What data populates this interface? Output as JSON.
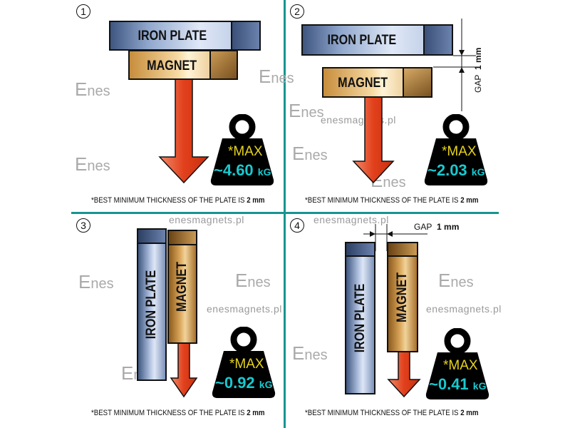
{
  "panels": [
    {
      "number": "1",
      "iron_label": "IRON PLATE",
      "magnet_label": "MAGNET",
      "max_label": "*MAX",
      "value": "~4.60",
      "unit": "kG",
      "footnote_prefix": "*BEST MINIMUM THICKNESS OF THE PLATE IS ",
      "footnote_bold": "2 mm"
    },
    {
      "number": "2",
      "iron_label": "IRON PLATE",
      "magnet_label": "MAGNET",
      "gap_label": "GAP",
      "gap_value": "1 mm",
      "max_label": "*MAX",
      "value": "~2.03",
      "unit": "kG",
      "footnote_prefix": "*BEST MINIMUM THICKNESS OF THE PLATE IS ",
      "footnote_bold": "2 mm"
    },
    {
      "number": "3",
      "iron_label": "IRON  PLATE",
      "magnet_label": "MAGNET",
      "max_label": "*MAX",
      "value": "~0.92",
      "unit": "kG",
      "footnote_prefix": "*BEST MINIMUM THICKNESS OF THE PLATE IS ",
      "footnote_bold": "2 mm"
    },
    {
      "number": "4",
      "iron_label": "IRON PLATE",
      "magnet_label": "MAGNET",
      "gap_label": "GAP",
      "gap_value": "1 mm",
      "max_label": "*MAX",
      "value": "~0.41",
      "unit": "kG",
      "footnote_prefix": "*BEST MINIMUM THICKNESS OF THE PLATE IS ",
      "footnote_bold": "2 mm"
    }
  ],
  "watermark": {
    "url": "enesmagnets.pl",
    "logo": "Enes"
  },
  "colors": {
    "divider": "#17958f",
    "arrow": "#e2401c",
    "max_text": "#e6d21c",
    "value_text": "#19c9cf"
  }
}
